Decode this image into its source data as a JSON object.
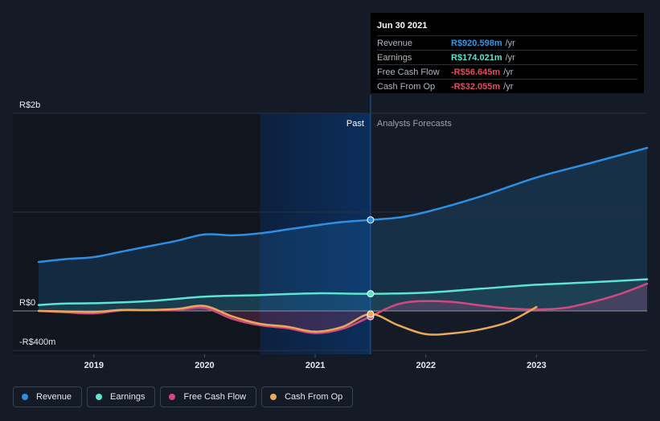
{
  "tooltip": {
    "date": "Jun 30 2021",
    "rows": [
      {
        "label": "Revenue",
        "value": "R$920.598m",
        "unit": "/yr",
        "color": "#2f9ae6"
      },
      {
        "label": "Earnings",
        "value": "R$174.021m",
        "unit": "/yr",
        "color": "#5de4cf"
      },
      {
        "label": "Free Cash Flow",
        "value": "-R$56.645m",
        "unit": "/yr",
        "color": "#e64a5d"
      },
      {
        "label": "Cash From Op",
        "value": "-R$32.055m",
        "unit": "/yr",
        "color": "#e64a5d"
      }
    ]
  },
  "legend": [
    {
      "label": "Revenue",
      "color": "#2d8fe3"
    },
    {
      "label": "Earnings",
      "color": "#5de4cf"
    },
    {
      "label": "Free Cash Flow",
      "color": "#d2497f"
    },
    {
      "label": "Cash From Op",
      "color": "#e8a95a"
    }
  ],
  "chart_data": {
    "type": "line",
    "title": "",
    "xlabel": "",
    "ylabel": "",
    "y_unit": "R$ millions",
    "ylim": [
      -400,
      2000
    ],
    "xlim": [
      2018.5,
      2024.0
    ],
    "y_tick_labels": [
      {
        "value": 2000,
        "label": "R$2b"
      },
      {
        "value": 0,
        "label": "R$0"
      },
      {
        "value": -400,
        "label": "-R$400m"
      }
    ],
    "x_ticks": [
      {
        "value": 2019,
        "label": "2019"
      },
      {
        "value": 2020,
        "label": "2020"
      },
      {
        "value": 2021,
        "label": "2021"
      },
      {
        "value": 2022,
        "label": "2022"
      },
      {
        "value": 2023,
        "label": "2023"
      }
    ],
    "past_start": 2020.5,
    "divider_x": 2021.5,
    "region_labels": {
      "past": "Past",
      "forecast": "Analysts Forecasts"
    },
    "series": [
      {
        "name": "Revenue",
        "color": "#2d8fe3",
        "points": [
          [
            2018.5,
            495
          ],
          [
            2018.75,
            525
          ],
          [
            2019.0,
            545
          ],
          [
            2019.25,
            600
          ],
          [
            2019.5,
            655
          ],
          [
            2019.75,
            710
          ],
          [
            2020.0,
            775
          ],
          [
            2020.25,
            765
          ],
          [
            2020.5,
            785
          ],
          [
            2020.75,
            825
          ],
          [
            2021.0,
            865
          ],
          [
            2021.25,
            900
          ],
          [
            2021.5,
            921
          ],
          [
            2021.75,
            945
          ],
          [
            2022.0,
            1000
          ],
          [
            2022.5,
            1160
          ],
          [
            2023.0,
            1350
          ],
          [
            2023.5,
            1500
          ],
          [
            2024.0,
            1650
          ]
        ]
      },
      {
        "name": "Earnings",
        "color": "#5de4cf",
        "points": [
          [
            2018.5,
            60
          ],
          [
            2018.75,
            75
          ],
          [
            2019.0,
            78
          ],
          [
            2019.5,
            100
          ],
          [
            2020.0,
            145
          ],
          [
            2020.5,
            160
          ],
          [
            2021.0,
            178
          ],
          [
            2021.5,
            174
          ],
          [
            2022.0,
            185
          ],
          [
            2022.5,
            225
          ],
          [
            2023.0,
            265
          ],
          [
            2023.5,
            290
          ],
          [
            2024.0,
            320
          ]
        ]
      },
      {
        "name": "Free Cash Flow",
        "color": "#d2497f",
        "points": [
          [
            2018.5,
            0
          ],
          [
            2018.75,
            -15
          ],
          [
            2019.0,
            -25
          ],
          [
            2019.25,
            5
          ],
          [
            2019.5,
            5
          ],
          [
            2019.75,
            10
          ],
          [
            2020.0,
            30
          ],
          [
            2020.25,
            -80
          ],
          [
            2020.5,
            -145
          ],
          [
            2020.75,
            -175
          ],
          [
            2021.0,
            -225
          ],
          [
            2021.25,
            -180
          ],
          [
            2021.5,
            -57
          ],
          [
            2021.75,
            70
          ],
          [
            2022.0,
            100
          ],
          [
            2022.25,
            90
          ],
          [
            2022.5,
            55
          ],
          [
            2022.75,
            25
          ],
          [
            2023.0,
            15
          ],
          [
            2023.25,
            30
          ],
          [
            2023.5,
            90
          ],
          [
            2023.75,
            170
          ],
          [
            2024.0,
            275
          ]
        ]
      },
      {
        "name": "Cash From Op",
        "color": "#e8a95a",
        "points": [
          [
            2018.5,
            0
          ],
          [
            2018.75,
            -5
          ],
          [
            2019.0,
            -10
          ],
          [
            2019.25,
            10
          ],
          [
            2019.5,
            10
          ],
          [
            2019.75,
            20
          ],
          [
            2020.0,
            50
          ],
          [
            2020.25,
            -55
          ],
          [
            2020.5,
            -130
          ],
          [
            2020.75,
            -160
          ],
          [
            2021.0,
            -210
          ],
          [
            2021.25,
            -160
          ],
          [
            2021.5,
            -32
          ],
          [
            2021.75,
            -145
          ],
          [
            2022.0,
            -235
          ],
          [
            2022.25,
            -225
          ],
          [
            2022.5,
            -185
          ],
          [
            2022.75,
            -110
          ],
          [
            2023.0,
            40
          ]
        ]
      }
    ],
    "highlight": {
      "x": 2021.5,
      "values": {
        "Revenue": 921,
        "Earnings": 174,
        "Free Cash Flow": -57,
        "Cash From Op": -32
      }
    }
  }
}
